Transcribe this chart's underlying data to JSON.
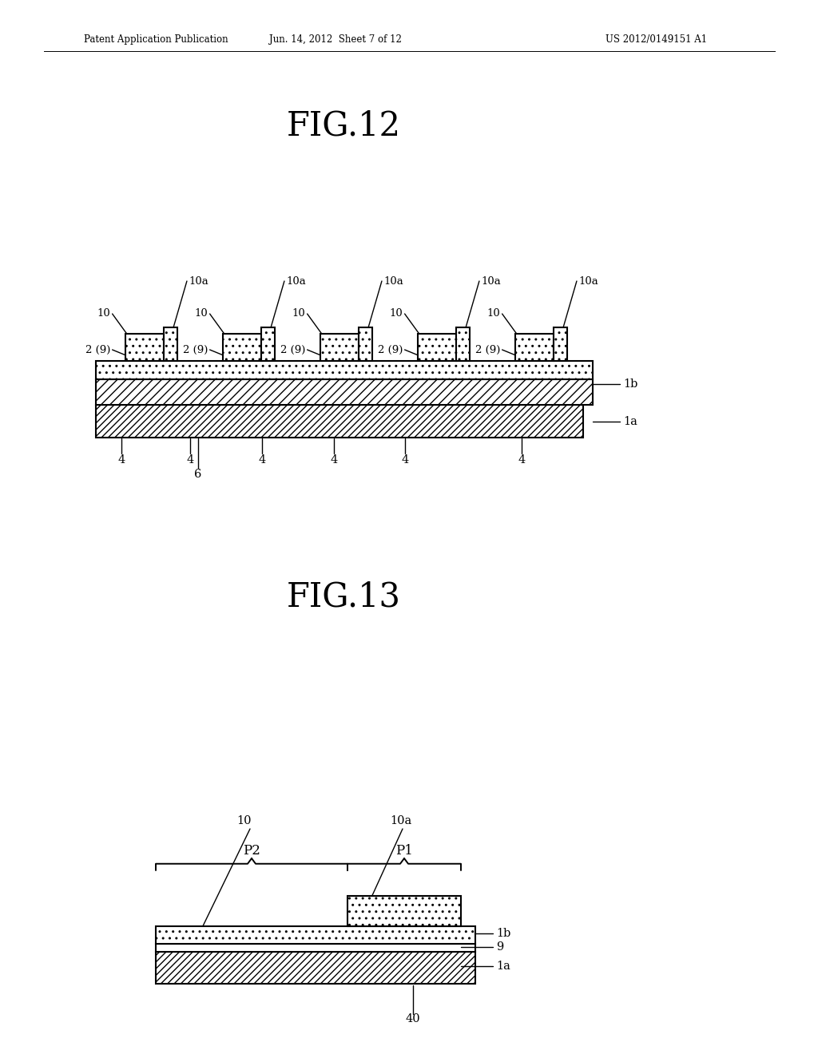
{
  "bg_color": "#ffffff",
  "header_left": "Patent Application Publication",
  "header_mid": "Jun. 14, 2012  Sheet 7 of 12",
  "header_right": "US 2012/0149151 A1",
  "fig12_title": "FIG.12",
  "fig13_title": "FIG.13",
  "lc": "#000000"
}
